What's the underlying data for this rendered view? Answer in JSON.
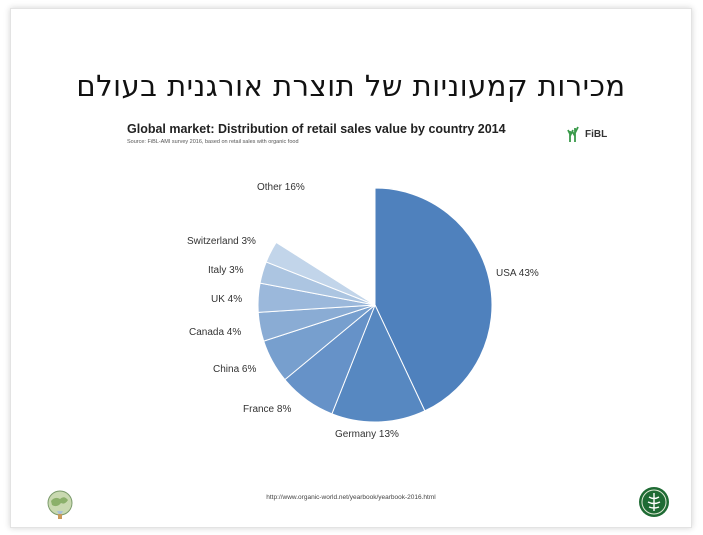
{
  "slide": {
    "hebrew_title": "מכירות קמעוניות של תוצרת אורגנית בעולם",
    "footer_url": "http://www.organic-world.net/yearbook/yearbook-2016.html",
    "logo_text": "FiBL"
  },
  "chart_data": {
    "type": "pie",
    "title": "Global market: Distribution of retail sales value by country 2014",
    "subtitle": "Source: FiBL-AMI survey 2016, based on retail sales with organic food",
    "start_angle": "12 o'clock",
    "direction": "clockwise",
    "slices": [
      {
        "label": "USA 43%",
        "value": 43,
        "color": "#4f81bd"
      },
      {
        "label": "Germany 13%",
        "value": 13,
        "color": "#5788c1"
      },
      {
        "label": "France 8%",
        "value": 8,
        "color": "#6692c8"
      },
      {
        "label": "China 6%",
        "value": 6,
        "color": "#779fce"
      },
      {
        "label": "Canada 4%",
        "value": 4,
        "color": "#8aacd4"
      },
      {
        "label": "UK 4%",
        "value": 4,
        "color": "#9bb8db"
      },
      {
        "label": "Italy 3%",
        "value": 3,
        "color": "#acc5e1"
      },
      {
        "label": "Switzerland 3%",
        "value": 3,
        "color": "#c2d5ea"
      },
      {
        "label": "Other 16%",
        "value": 16,
        "color": "#ffffff"
      }
    ]
  }
}
